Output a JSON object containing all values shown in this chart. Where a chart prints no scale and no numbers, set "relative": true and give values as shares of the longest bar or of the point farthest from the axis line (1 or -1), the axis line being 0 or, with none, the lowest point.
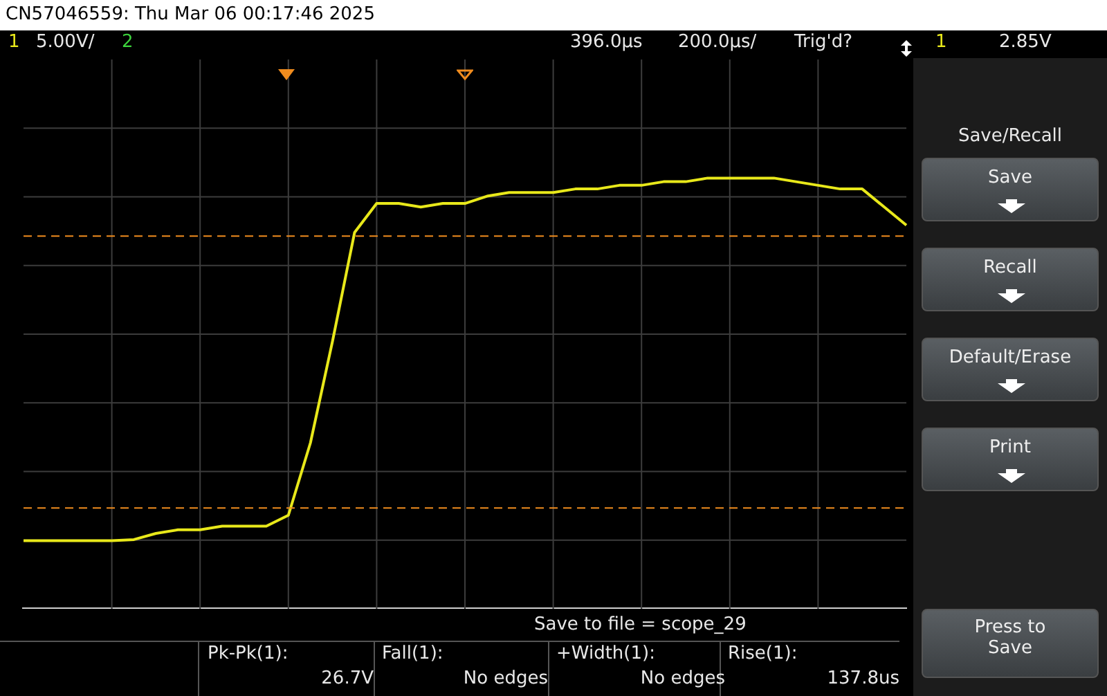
{
  "chart_data": {
    "type": "line",
    "title": "CN57046559: Thu Mar 06 00:17:46 2025",
    "relative": true,
    "categories": [
      null,
      null,
      null,
      null,
      null,
      null,
      null,
      null,
      null,
      null,
      null,
      null,
      null,
      null,
      null,
      null,
      null,
      null,
      null,
      null,
      null,
      null,
      null,
      null,
      null,
      null,
      null,
      null,
      null,
      null,
      null,
      null,
      null,
      null,
      null,
      null,
      null,
      null,
      null,
      null,
      null
    ],
    "series": [
      {
        "color": "#e8e81a",
        "values": [
          0,
          0,
          0,
          0,
          0,
          0.003,
          0.02,
          0.03,
          0.03,
          0.04,
          0.04,
          0.04,
          0.07,
          0.27,
          0.55,
          0.85,
          0.93,
          0.93,
          0.92,
          0.93,
          0.93,
          0.95,
          0.96,
          0.96,
          0.96,
          0.97,
          0.97,
          0.98,
          0.98,
          0.99,
          0.99,
          1.0,
          1,
          1.0,
          1.0,
          0.99,
          0.98,
          0.97,
          0.97,
          0.92,
          0.87
        ]
      }
    ],
    "grid": true,
    "marker": "none",
    "line_style": "solid",
    "ref_lines": [
      {
        "axis": "y",
        "value": 0.09,
        "color": "#f08c1e",
        "line_style": "dashed"
      },
      {
        "axis": "y",
        "value": 0.84,
        "color": "#f08c1e",
        "line_style": "dashed"
      }
    ],
    "annotations": [
      "1",
      "5.00V/",
      "2",
      "396.0µs",
      "200.0µs/",
      "Trig'd?",
      "1",
      "2.85V",
      "Save to file = scope_29",
      "Pk-Pk(1):",
      "26.7V",
      "Fall(1):",
      "No edges",
      "+Width(1):",
      "No edges",
      "Rise(1):",
      "137.8us",
      "Save/Recall",
      "Save",
      "Recall",
      "Default/Erase",
      "Print",
      "Press to Save"
    ]
  }
}
